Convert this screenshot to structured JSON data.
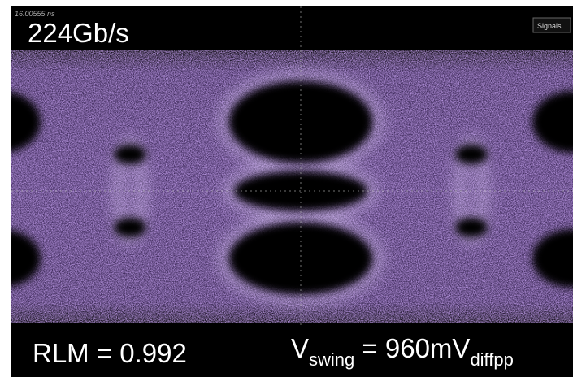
{
  "screen": {
    "timestamp": "16.00555 ns",
    "title": "224Gb/s",
    "menu_button": "Signals",
    "annotations": {
      "rlm": "RLM = 0.992",
      "vswing": {
        "symbol": "V",
        "subscript": "swing",
        "equals": " = 960mV",
        "unit_subscript": "diffpp"
      }
    }
  }
}
